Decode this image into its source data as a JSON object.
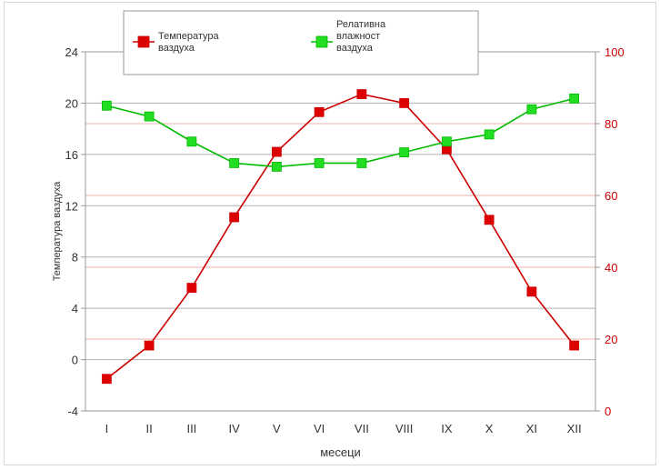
{
  "chart_data": {
    "type": "line",
    "categories": [
      "I",
      "II",
      "III",
      "IV",
      "V",
      "VI",
      "VII",
      "VIII",
      "IX",
      "X",
      "XI",
      "XII"
    ],
    "xlabel": "месеци",
    "ylabel": "Температура ваздуха",
    "y2label": "",
    "ylim": [
      -4,
      24
    ],
    "y2lim": [
      0,
      100
    ],
    "yticks": [
      "24",
      "20",
      "16",
      "12",
      "8",
      "4",
      "0",
      "-4"
    ],
    "y2ticks": [
      "100",
      "80",
      "60",
      "40",
      "20",
      "0"
    ],
    "grid": true,
    "legend_position": "top",
    "series": [
      {
        "name": "Температура ваздуха",
        "legend_lines": [
          "Температура",
          "ваздуха"
        ],
        "axis": "left",
        "color": "#cc0000",
        "values": [
          -1.5,
          1.1,
          5.6,
          11.1,
          16.2,
          19.3,
          20.7,
          20.0,
          16.4,
          10.9,
          5.3,
          1.1
        ]
      },
      {
        "name": "Релативна влажност ваздуха",
        "legend_lines": [
          "Релативна",
          "влажност",
          "ваздуха"
        ],
        "axis": "right",
        "color": "#00bb00",
        "values": [
          85,
          82,
          75,
          69,
          68,
          69,
          69,
          72,
          75,
          77,
          84,
          87
        ]
      }
    ]
  },
  "colors": {
    "left_axis_text": "#333333",
    "right_axis_text": "#cc0000",
    "grid_left": "#b0b0b0",
    "grid_right": "#f0b0a8",
    "temp_marker": "#dd0000",
    "hum_marker": "#22dd22"
  }
}
